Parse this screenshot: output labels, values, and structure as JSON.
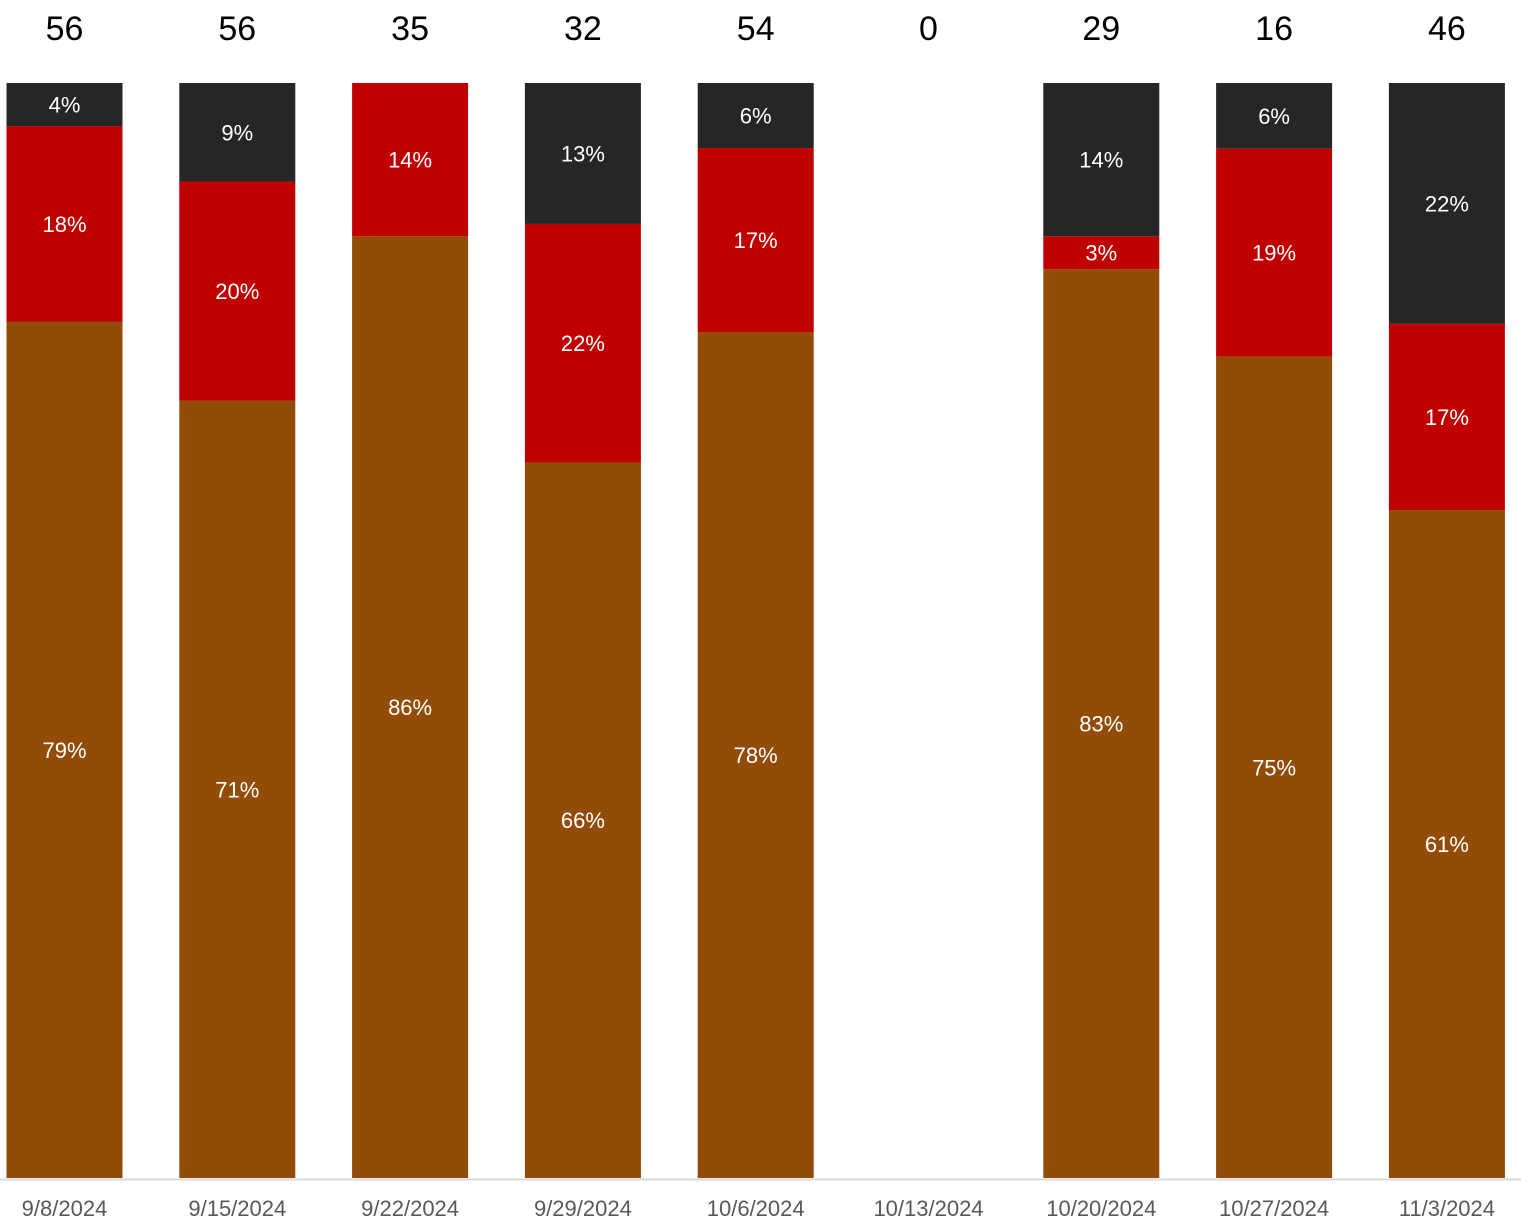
{
  "chart_data": {
    "type": "bar",
    "stacked": true,
    "normalized": true,
    "categories": [
      "9/8/2024",
      "9/15/2024",
      "9/22/2024",
      "9/29/2024",
      "10/6/2024",
      "10/13/2024",
      "10/20/2024",
      "10/27/2024",
      "11/3/2024"
    ],
    "totals": [
      "56",
      "56",
      "35",
      "32",
      "54",
      "0",
      "29",
      "16",
      "46"
    ],
    "series": [
      {
        "key": "bottom",
        "color": "#924C07",
        "values": [
          79,
          71,
          86,
          66,
          78,
          0,
          83,
          75,
          61
        ],
        "labels": [
          "79%",
          "71%",
          "86%",
          "66%",
          "78%",
          "",
          "83%",
          "75%",
          "61%"
        ]
      },
      {
        "key": "middle",
        "color": "#C00000",
        "values": [
          18,
          20,
          14,
          22,
          17,
          0,
          3,
          19,
          17
        ],
        "labels": [
          "18%",
          "20%",
          "14%",
          "22%",
          "17%",
          "",
          "3%",
          "19%",
          "17%"
        ]
      },
      {
        "key": "top",
        "color": "#262626",
        "values": [
          4,
          9,
          0,
          13,
          6,
          0,
          14,
          6,
          22
        ],
        "labels": [
          "4%",
          "9%",
          "",
          "13%",
          "6%",
          "",
          "14%",
          "6%",
          "22%"
        ]
      }
    ],
    "ylim": [
      0,
      100
    ],
    "grid": false,
    "legend": "none",
    "axis_color": "#D9D9D9"
  }
}
